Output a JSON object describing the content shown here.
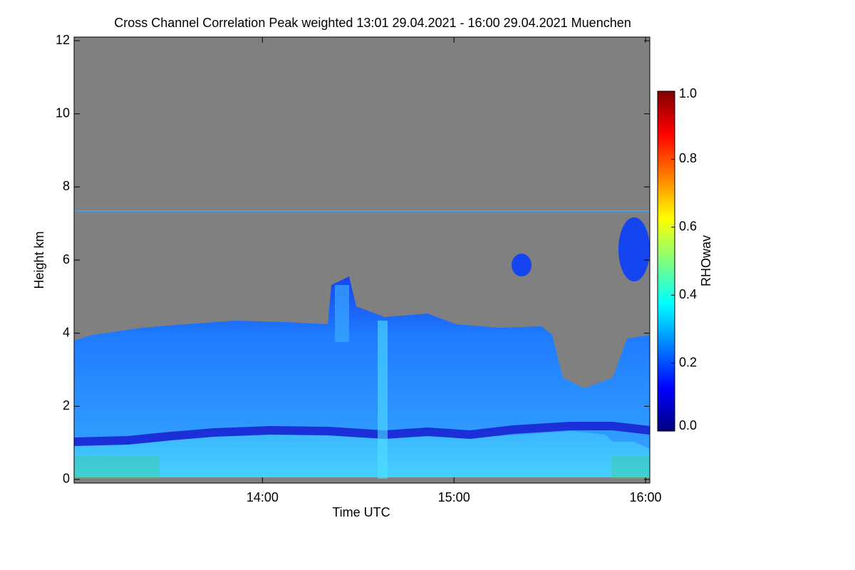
{
  "chart_data": {
    "type": "heatmap",
    "title": "Cross Channel Correlation Peak weighted   13:01 29.04.2021 - 16:00 29.04.2021 Muenchen",
    "x_label": "Time UTC",
    "y_label": "Height km",
    "xlim": [
      13.0167,
      16.0222
    ],
    "xticks": [
      {
        "value": 14,
        "label": "14:00"
      },
      {
        "value": 15,
        "label": "15:00"
      },
      {
        "value": 16,
        "label": "16:00"
      }
    ],
    "ylim": [
      -0.1,
      12.1
    ],
    "yticks": [
      0,
      2,
      4,
      6,
      8,
      10,
      12
    ],
    "colorbar": {
      "label": "RHOwav",
      "lim": [
        0,
        1
      ],
      "ticks": [
        {
          "value": 0,
          "label": "0.0"
        },
        {
          "value": 0.2,
          "label": "0.2"
        },
        {
          "value": 0.4,
          "label": "0.4"
        },
        {
          "value": 0.6,
          "label": "0.6"
        },
        {
          "value": 0.8,
          "label": "0.8"
        },
        {
          "value": 1,
          "label": "1.0"
        }
      ],
      "colors": [
        "#00007f",
        "#0000ff",
        "#007fff",
        "#00ffff",
        "#7fff7f",
        "#ffff00",
        "#ff7f00",
        "#ff0000",
        "#7f0000"
      ]
    }
  }
}
